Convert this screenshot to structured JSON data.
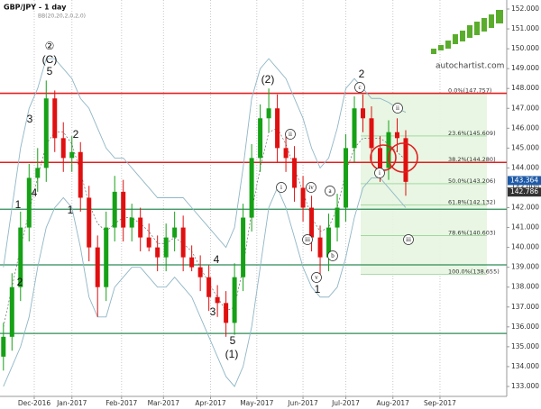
{
  "chart_data": {
    "type": "candlestick",
    "title": "GBP/JPY - 1 day",
    "subtitle": "BB(20,20,2,0,2,0)",
    "brand": "autochartist.com",
    "x": [
      0,
      1,
      2,
      3,
      4,
      5,
      6,
      7,
      8,
      9,
      10,
      11,
      12,
      13,
      14,
      15,
      16,
      17,
      18,
      19,
      20,
      21,
      22,
      23,
      24,
      25,
      26,
      27,
      28,
      29,
      30,
      31,
      32,
      33,
      34,
      35,
      36,
      37,
      38,
      39,
      40,
      41,
      42,
      43,
      44,
      45,
      46,
      47
    ],
    "open": [
      134.5,
      135.5,
      138,
      141,
      143.5,
      144,
      147.5,
      145.5,
      144.5,
      144.8,
      142.5,
      140,
      138,
      141,
      142.8,
      141,
      141.5,
      140.5,
      140,
      139.5,
      140.5,
      141,
      139.5,
      139,
      138.5,
      137.5,
      137.2,
      136.2,
      138.5,
      141.5,
      144.5,
      146.5,
      147,
      145,
      144.5,
      143,
      142,
      140.5,
      139.5,
      141,
      142,
      145,
      147,
      146.5,
      145,
      144,
      145.8,
      145.5
    ],
    "close": [
      135.5,
      138,
      141,
      143.5,
      144,
      147.5,
      145.5,
      144.5,
      144.8,
      142.5,
      140,
      138,
      141,
      142.8,
      141,
      141.5,
      140.5,
      140,
      139.5,
      140.5,
      141,
      139.5,
      139,
      138.5,
      137.5,
      137.2,
      136.2,
      138.5,
      141.5,
      144.5,
      146.5,
      147,
      145,
      144.5,
      143,
      142,
      140.5,
      139.5,
      141,
      142,
      145,
      147,
      146.5,
      145,
      144,
      145.8,
      145.5,
      143.3
    ],
    "high": [
      136.2,
      138.7,
      141.8,
      144.2,
      145,
      148.4,
      147.9,
      146.3,
      145.6,
      145.3,
      143.1,
      140.6,
      141.8,
      143.6,
      143.4,
      142.2,
      142,
      141.2,
      140.6,
      141.2,
      141.8,
      141.6,
      140.1,
      139.6,
      139.1,
      138.1,
      137.8,
      139.2,
      142.2,
      145.2,
      147.2,
      148,
      147.7,
      145.7,
      145.1,
      143.6,
      142.6,
      141.1,
      141.7,
      142.7,
      145.7,
      147.6,
      147.7,
      147.1,
      145.6,
      146.4,
      146.5,
      145.9
    ],
    "low": [
      133.8,
      134.8,
      137.3,
      140.3,
      142.8,
      143.3,
      144.8,
      143.8,
      143.8,
      141.8,
      139.3,
      136.5,
      137.3,
      140.3,
      140.3,
      140.3,
      139.8,
      139.8,
      138.8,
      138.8,
      139.8,
      138.8,
      138.8,
      137.8,
      136.8,
      136.5,
      135.5,
      135.6,
      137.8,
      140.8,
      143.8,
      145.8,
      144.3,
      143.8,
      142.3,
      141.3,
      139.8,
      138.6,
      138.8,
      140.3,
      141.3,
      144.3,
      145.8,
      144.3,
      143.3,
      143.4,
      144.8,
      142.6
    ],
    "up_color": "#16a116",
    "down_color": "#e01010",
    "bands": {
      "color": "#8fb6c6",
      "upper": [
        139,
        142,
        145,
        147,
        148,
        149.5,
        149.5,
        149,
        148.5,
        147.5,
        147,
        146,
        145,
        144.5,
        144.5,
        144,
        143.5,
        143,
        142.5,
        142.5,
        142.5,
        142.5,
        142,
        141.5,
        141,
        140.5,
        140,
        141,
        144,
        147.5,
        149,
        149.5,
        149,
        148.5,
        147.5,
        146.5,
        145,
        144,
        144.5,
        146,
        148,
        148.5,
        148,
        147.5,
        147.5,
        147.3,
        147,
        146.8
      ],
      "middle": [
        136,
        138,
        140,
        141.8,
        143.5,
        145.2,
        145.8,
        145.8,
        145.2,
        143.8,
        142.2,
        141.2,
        140.8,
        141.2,
        141.5,
        141.5,
        141.2,
        140.8,
        140.2,
        140.2,
        140.5,
        140.2,
        139.8,
        139,
        138.2,
        137.5,
        136.8,
        137,
        139,
        141.8,
        144,
        145.8,
        146,
        145.2,
        144,
        142.8,
        141.5,
        140.8,
        141,
        142,
        143.8,
        145,
        145.5,
        145.5,
        145.5,
        145.2,
        144.8,
        144.4
      ],
      "lower": [
        133,
        134,
        135,
        136.5,
        139,
        141,
        142,
        142.5,
        142,
        140,
        137.5,
        136.5,
        136.5,
        138,
        138.5,
        139,
        139,
        138.5,
        138,
        138,
        138.5,
        138,
        137.5,
        136.5,
        135.5,
        134.5,
        133.5,
        133,
        134,
        136,
        139,
        142,
        143,
        142,
        140.5,
        139,
        138,
        137.5,
        137.5,
        138,
        139.5,
        141.5,
        143,
        143.5,
        143.5,
        143,
        142.5,
        142
      ]
    },
    "xlim": [
      -0.4,
      58.8
    ],
    "xticks": [
      {
        "value": 3.6,
        "label": "Dec-2016"
      },
      {
        "value": 8,
        "label": "Jan-2017"
      },
      {
        "value": 13.8,
        "label": "Feb-2017"
      },
      {
        "value": 18.7,
        "label": "Mar-2017"
      },
      {
        "value": 24.2,
        "label": "Apr-2017"
      },
      {
        "value": 29.6,
        "label": "May-2017"
      },
      {
        "value": 35,
        "label": "Jun-2017"
      },
      {
        "value": 40,
        "label": "Jul-2017"
      },
      {
        "value": 45.5,
        "label": "Aug-2017"
      },
      {
        "value": 51,
        "label": "Sep-2017"
      }
    ],
    "ylim": [
      132.5,
      152.454
    ],
    "yticks": [
      {
        "value": 133,
        "label": "133.000"
      },
      {
        "value": 134,
        "label": "134.000"
      },
      {
        "value": 135,
        "label": "135.000"
      },
      {
        "value": 136,
        "label": "136.000"
      },
      {
        "value": 137,
        "label": "137.000"
      },
      {
        "value": 138,
        "label": "138.000"
      },
      {
        "value": 139,
        "label": "139.000"
      },
      {
        "value": 140,
        "label": "140.000"
      },
      {
        "value": 141,
        "label": "141.000"
      },
      {
        "value": 142,
        "label": "142.000"
      },
      {
        "value": 143,
        "label": "143.000"
      },
      {
        "value": 144,
        "label": "144.000"
      },
      {
        "value": 145,
        "label": "145.000"
      },
      {
        "value": 146,
        "label": "146.000"
      },
      {
        "value": 147,
        "label": "147.000"
      },
      {
        "value": 148,
        "label": "148.000"
      },
      {
        "value": 149,
        "label": "149.000"
      },
      {
        "value": 150,
        "label": "150.000"
      },
      {
        "value": 151,
        "label": "151.000"
      },
      {
        "value": 152,
        "label": "152.000"
      }
    ],
    "grid": true,
    "levels": [
      {
        "value": 147.757,
        "color": "#e02020"
      },
      {
        "value": 144.28,
        "color": "#e02020"
      },
      {
        "value": 141.92,
        "color": "#2e8b57"
      },
      {
        "value": 139.12,
        "color": "#2e8b57"
      },
      {
        "value": 135.67,
        "color": "#2e8b57"
      }
    ],
    "fibonacci": [
      {
        "value": 147.757,
        "label": "0.0%(147.757)"
      },
      {
        "value": 145.609,
        "label": "23.6%(145.609)"
      },
      {
        "value": 144.28,
        "label": "38.2%(144.280)"
      },
      {
        "value": 143.206,
        "label": "50.0%(143.206)"
      },
      {
        "value": 142.132,
        "label": "61.8%(142.132)"
      },
      {
        "value": 140.603,
        "label": "78.6%(140.603)"
      },
      {
        "value": 138.655,
        "label": "100.0%(138.655)"
      }
    ],
    "price_tags": [
      {
        "value": 143.364,
        "label": "143.364",
        "color": "#1e5aa8"
      },
      {
        "value": 142.786,
        "label": "142.786",
        "color": "#333333"
      }
    ],
    "wave_labels": [
      "②",
      "(C)",
      "5",
      "3",
      "2",
      "4",
      "1",
      "2",
      "1",
      "(2)",
      "1",
      "2",
      "4",
      "3",
      "5",
      "(1)"
    ],
    "circled_labels": [
      "ii",
      "i",
      "iv",
      "a",
      "iii",
      "b",
      "v",
      "c",
      "ii",
      "i",
      "iii"
    ]
  }
}
